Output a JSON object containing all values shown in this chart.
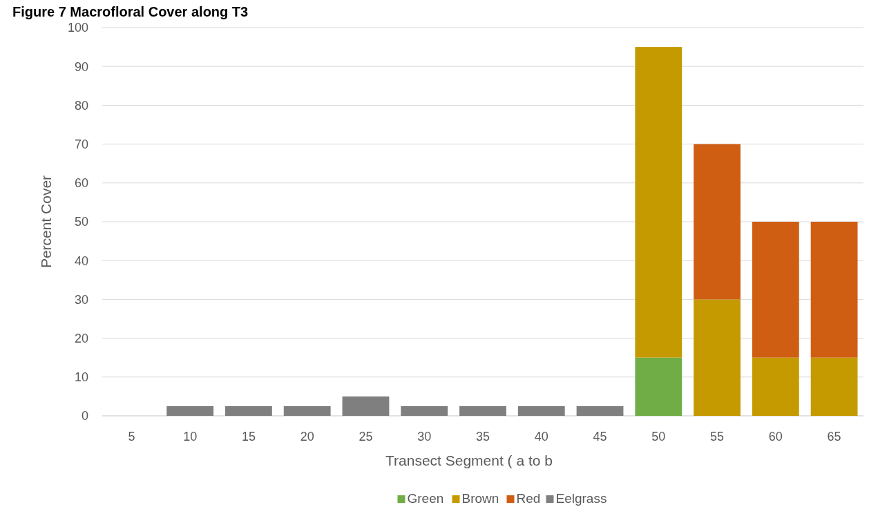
{
  "chart_data": {
    "type": "bar",
    "title": "Figure 7     Macrofloral Cover along T3",
    "xlabel": "Transect Segment ( a to b",
    "ylabel": "Percent Cover",
    "categories": [
      "5",
      "10",
      "15",
      "20",
      "25",
      "30",
      "35",
      "40",
      "45",
      "50",
      "55",
      "60",
      "65"
    ],
    "stacked": true,
    "series": [
      {
        "name": "Green",
        "color": "#70ad47",
        "values": [
          0,
          0,
          0,
          0,
          0,
          0,
          0,
          0,
          0,
          15,
          0,
          0,
          0
        ]
      },
      {
        "name": "Brown",
        "color": "#c49a00",
        "values": [
          0,
          0,
          0,
          0,
          0,
          0,
          0,
          0,
          0,
          80,
          30,
          15,
          15
        ]
      },
      {
        "name": "Red",
        "color": "#d05e12",
        "values": [
          0,
          0,
          0,
          0,
          0,
          0,
          0,
          0,
          0,
          0,
          40,
          35,
          35
        ]
      },
      {
        "name": "Eelgrass",
        "color": "#7f7f7f",
        "values": [
          0,
          2.5,
          2.5,
          2.5,
          5,
          2.5,
          2.5,
          2.5,
          2.5,
          0,
          0,
          0,
          0
        ]
      }
    ],
    "ylim": [
      0,
      100
    ],
    "yticks": [
      0,
      10,
      20,
      30,
      40,
      50,
      60,
      70,
      80,
      90,
      100
    ],
    "grid": "y",
    "legend": "bottom"
  }
}
